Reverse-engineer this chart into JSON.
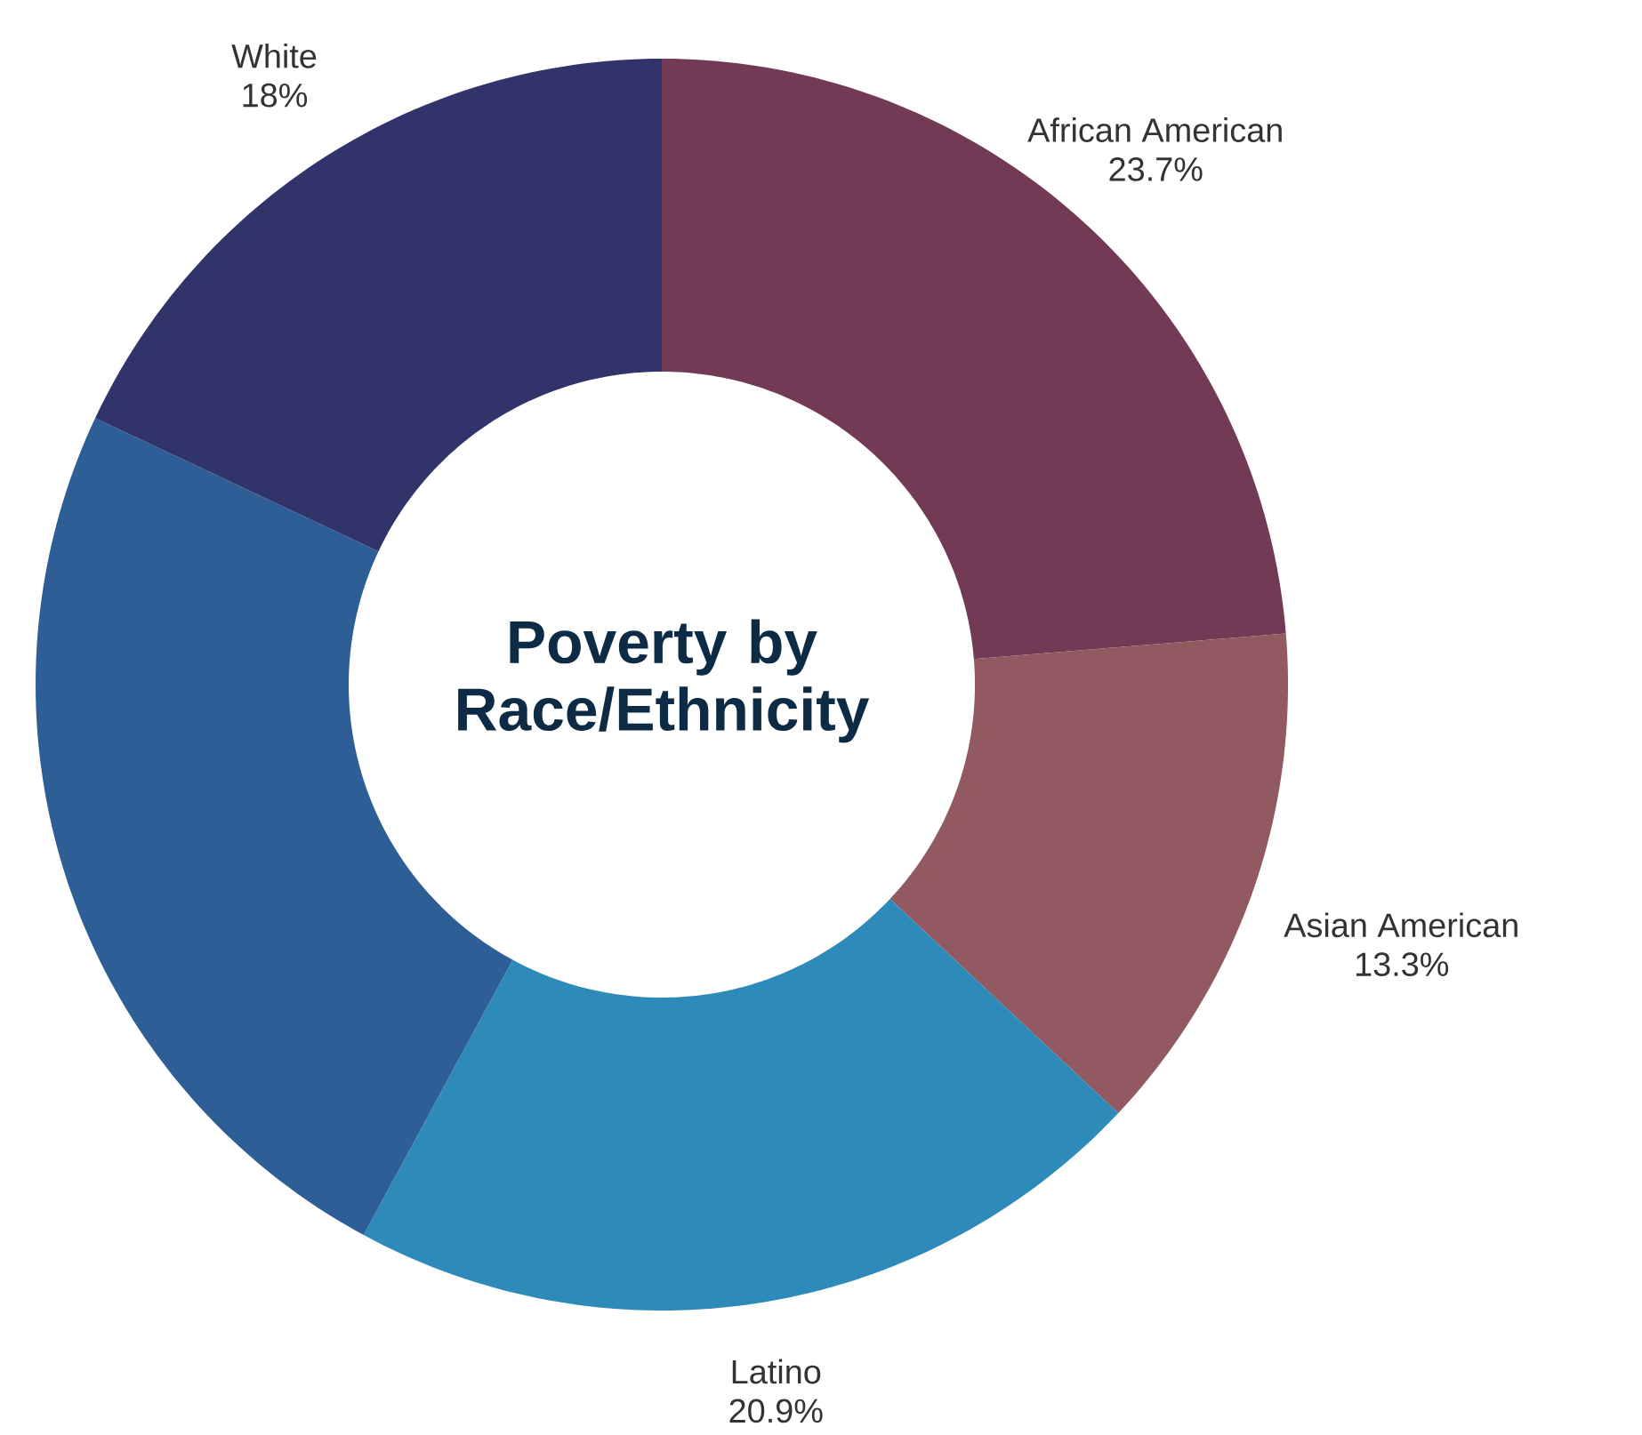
{
  "chart_data": {
    "type": "donut",
    "title": "Poverty by Race/Ethnicity",
    "categories": [
      "African American",
      "Asian American",
      "Latino",
      null,
      "White"
    ],
    "values": [
      23.7,
      13.3,
      20.9,
      24.1,
      18
    ],
    "colors": [
      "#733a56",
      "#925a60",
      "#2e8bb9",
      "#2e5e96",
      "#30346b"
    ],
    "value_labels": [
      "23.7%",
      "13.3%",
      "20.9%",
      null,
      "18%"
    ]
  }
}
